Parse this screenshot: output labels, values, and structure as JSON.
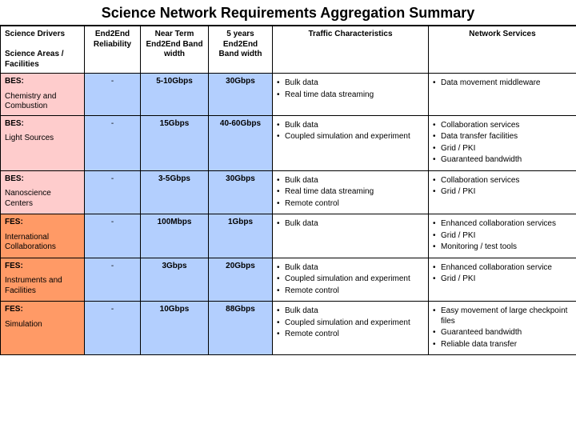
{
  "title": "Science Network Requirements Aggregation Summary",
  "colors": {
    "pink": "#fecccc",
    "salmon": "#ff9a66",
    "blue": "#b3cffe",
    "white": "#ffffff",
    "border": "#000000"
  },
  "columns": [
    {
      "line1": "Science Drivers",
      "line2": "Science Areas / Facilities"
    },
    {
      "line1": "End2End Reliability",
      "line2": ""
    },
    {
      "line1": "Near Term End2End Band width",
      "line2": ""
    },
    {
      "line1": "5 years End2End Band width",
      "line2": ""
    },
    {
      "line1": "Traffic Characteristics",
      "line2": ""
    },
    {
      "line1": "Network Services",
      "line2": ""
    }
  ],
  "rows": [
    {
      "shade_left": "shade-pink",
      "driver": "BES:",
      "facility": "Chemistry and Combustion",
      "reliability": "-",
      "near_term": "5-10Gbps",
      "five_year": "30Gbps",
      "traffic": [
        "Bulk data",
        "Real time data streaming"
      ],
      "services": [
        "Data movement middleware"
      ]
    },
    {
      "shade_left": "shade-pink",
      "driver": "BES:",
      "facility": "Light Sources",
      "reliability": "-",
      "near_term": "15Gbps",
      "five_year": "40-60Gbps",
      "traffic": [
        "Bulk data",
        "Coupled simulation and experiment"
      ],
      "services": [
        "Collaboration services",
        "Data transfer facilities",
        "Grid / PKI",
        "Guaranteed bandwidth"
      ]
    },
    {
      "shade_left": "shade-pink",
      "driver": "BES:",
      "facility": "Nanoscience Centers",
      "reliability": "-",
      "near_term": "3-5Gbps",
      "five_year": "30Gbps",
      "traffic": [
        "Bulk data",
        "Real time data streaming",
        "Remote control"
      ],
      "services": [
        "Collaboration services",
        "Grid / PKI"
      ]
    },
    {
      "shade_left": "shade-salmon",
      "driver": "FES:",
      "facility": "International Collaborations",
      "reliability": "-",
      "near_term": "100Mbps",
      "five_year": "1Gbps",
      "traffic": [
        "Bulk data"
      ],
      "services": [
        "Enhanced collaboration services",
        "Grid / PKI",
        "Monitoring / test tools"
      ]
    },
    {
      "shade_left": "shade-salmon",
      "driver": "FES:",
      "facility": "Instruments and Facilities",
      "reliability": "-",
      "near_term": "3Gbps",
      "five_year": "20Gbps",
      "traffic": [
        "Bulk data",
        "Coupled simulation and experiment",
        "Remote control"
      ],
      "services": [
        "Enhanced collaboration service",
        "Grid / PKI"
      ]
    },
    {
      "shade_left": "shade-salmon",
      "driver": "FES:",
      "facility": "Simulation",
      "reliability": "-",
      "near_term": "10Gbps",
      "five_year": "88Gbps",
      "traffic": [
        "Bulk data",
        "Coupled simulation and experiment",
        "Remote control"
      ],
      "services": [
        "Easy movement of large checkpoint files",
        "Guaranteed bandwidth",
        "Reliable data transfer"
      ]
    }
  ]
}
